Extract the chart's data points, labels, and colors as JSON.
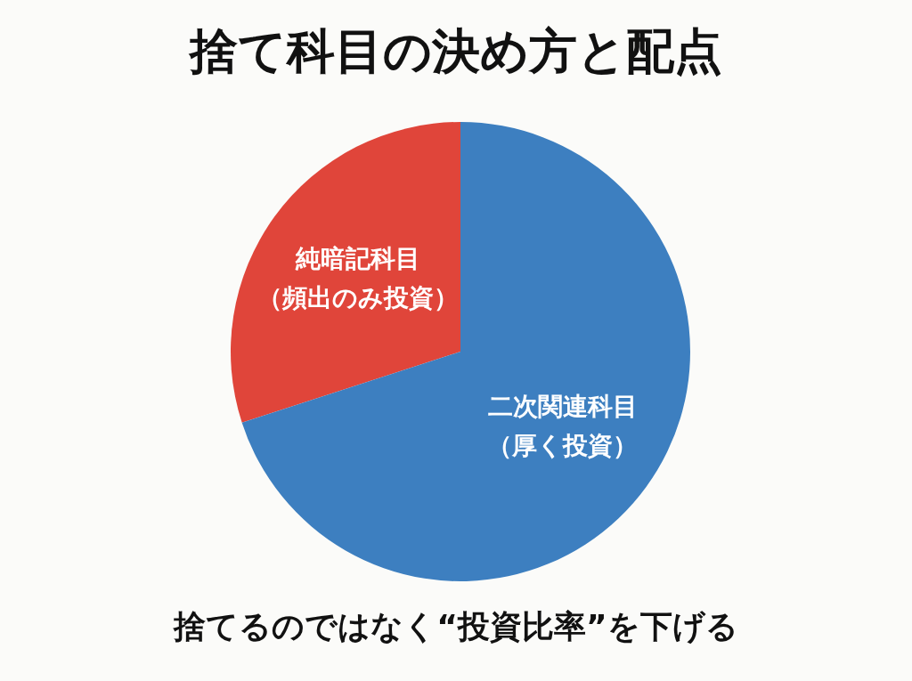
{
  "chart_data": {
    "type": "pie",
    "title": "捨て科目の決め方と配点",
    "categories": [
      "純暗記科目（頻出のみ投資）",
      "二次関連科目（厚く投資）"
    ],
    "values": [
      30,
      70
    ],
    "colors": [
      "#e0453a",
      "#3d7fc0"
    ],
    "annotations": [
      "捨てるのではなく“投資比率”を下げる"
    ]
  }
}
